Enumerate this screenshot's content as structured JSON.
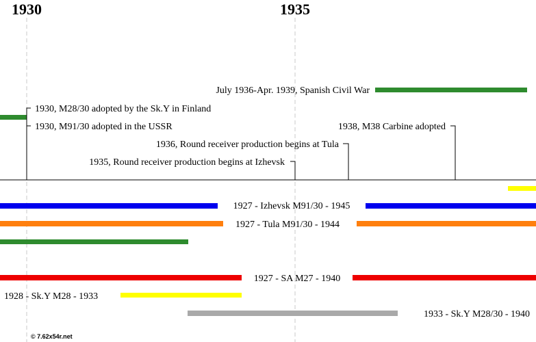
{
  "years": [
    "1930",
    "1935"
  ],
  "events": [
    {
      "text": "July 1936-Apr. 1939, Spanish Civil War",
      "color": "#2e8b2e"
    },
    {
      "text": "1930, M28/30 adopted by the Sk.Y in Finland",
      "color": "#2e8b2e"
    },
    {
      "text": "1930, M91/30 adopted in the USSR"
    },
    {
      "text": "1938, M38 Carbine adopted"
    },
    {
      "text": "1936, Round receiver production begins at Tula"
    },
    {
      "text": "1935, Round receiver production begins at Izhevsk"
    }
  ],
  "production": [
    {
      "text": "1927 - Izhevsk M91/30 - 1945",
      "color": "#0000ee"
    },
    {
      "text": "1927 - Tula M91/30 - 1944",
      "color": "#ff7f0e"
    },
    {
      "text": "",
      "color": "#2e8b2e"
    },
    {
      "text": "",
      "color": "#ffff00"
    },
    {
      "text": "1927 - SA M27 - 1940",
      "color": "#ee0000"
    },
    {
      "text": "1928 - Sk.Y M28 - 1933",
      "color": "#ffff00"
    },
    {
      "text": "1933 - Sk.Y M28/30 - 1940",
      "color": "#a9a9a9"
    }
  ],
  "credit": "© 7.62x54r.net"
}
